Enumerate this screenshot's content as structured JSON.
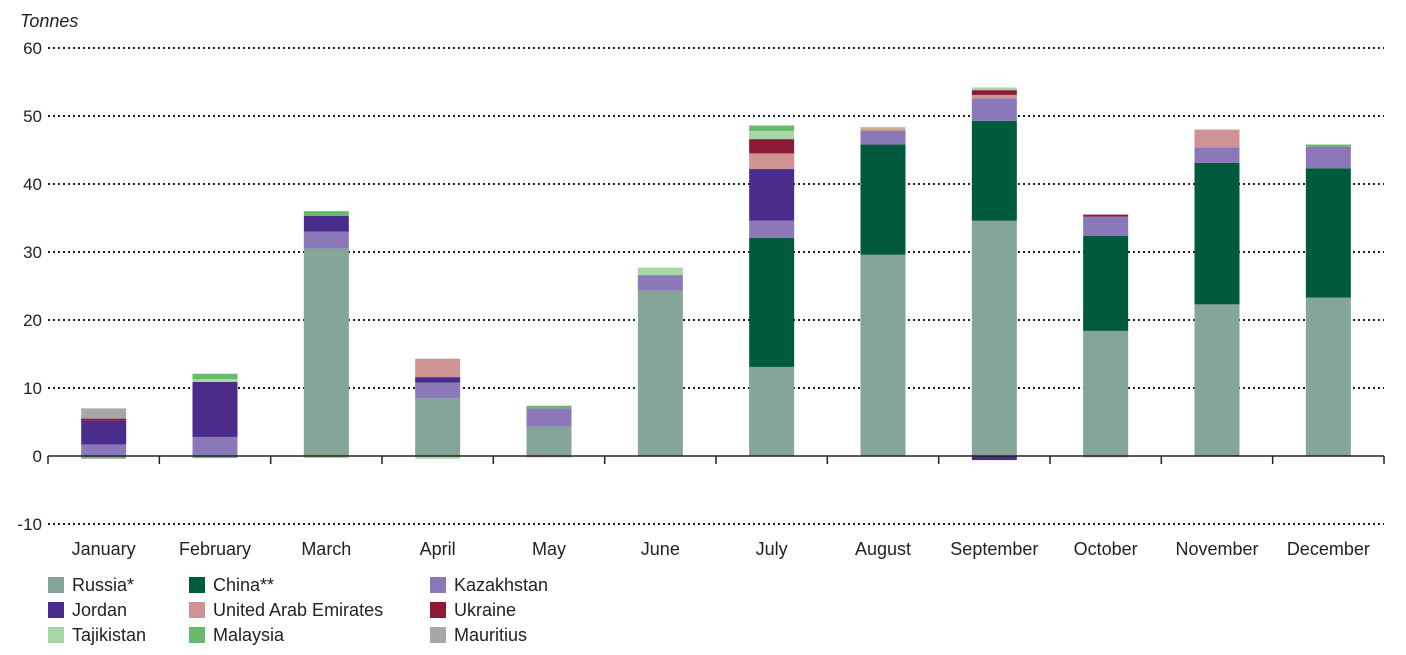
{
  "chart_data": {
    "type": "bar",
    "stacked": true,
    "ylabel": "Tonnes",
    "xlabel": "",
    "ylim": [
      -10,
      60
    ],
    "yticks": [
      -10,
      0,
      10,
      20,
      30,
      40,
      50,
      60
    ],
    "grid": true,
    "legend_position": "bottom-left",
    "categories": [
      "January",
      "February",
      "March",
      "April",
      "May",
      "June",
      "July",
      "August",
      "September",
      "October",
      "November",
      "December"
    ],
    "series": [
      {
        "name": "Russia*",
        "color": "#84a597",
        "values": [
          -0.4,
          -0.3,
          30.5,
          8.5,
          4.3,
          24.3,
          13.1,
          29.6,
          34.6,
          18.4,
          22.3,
          23.3
        ]
      },
      {
        "name": "China**",
        "color": "#005a3e",
        "values": [
          0,
          0,
          0,
          0,
          0,
          0,
          19.0,
          16.2,
          14.7,
          14.0,
          20.8,
          19.0
        ]
      },
      {
        "name": "Kazakhstan",
        "color": "#8a78b8",
        "values": [
          1.7,
          2.8,
          2.5,
          2.3,
          2.7,
          2.3,
          2.5,
          2.0,
          3.3,
          2.8,
          2.3,
          3.2
        ]
      },
      {
        "name": "Jordan",
        "color": "#4a2d8b",
        "values": [
          3.5,
          8.1,
          2.3,
          0.8,
          0,
          0,
          7.6,
          0,
          -0.6,
          0,
          0,
          0
        ]
      },
      {
        "name": "United Arab Emirates",
        "color": "#cf9393",
        "values": [
          0,
          0,
          0,
          2.7,
          -0.2,
          0,
          2.3,
          0.4,
          0.5,
          -0.2,
          2.6,
          0
        ]
      },
      {
        "name": "Ukraine",
        "color": "#8b1a35",
        "values": [
          0.3,
          0,
          0,
          0,
          0,
          0,
          2.1,
          0,
          0.7,
          0.3,
          0,
          0
        ]
      },
      {
        "name": "Tajikistan",
        "color": "#a8d6a4",
        "values": [
          0,
          0.4,
          -0.3,
          -0.4,
          0,
          1.1,
          1.2,
          0.2,
          0.4,
          0,
          0,
          0
        ]
      },
      {
        "name": "Malaysia",
        "color": "#66bb6a",
        "values": [
          0,
          0.8,
          0.7,
          0,
          0.4,
          0,
          0.8,
          0,
          0,
          0,
          0,
          0.3
        ]
      },
      {
        "name": "Mauritius",
        "color": "#a7a7a7",
        "values": [
          1.5,
          0,
          0,
          0,
          0,
          0,
          0,
          0,
          0,
          0,
          0,
          0
        ]
      }
    ]
  }
}
